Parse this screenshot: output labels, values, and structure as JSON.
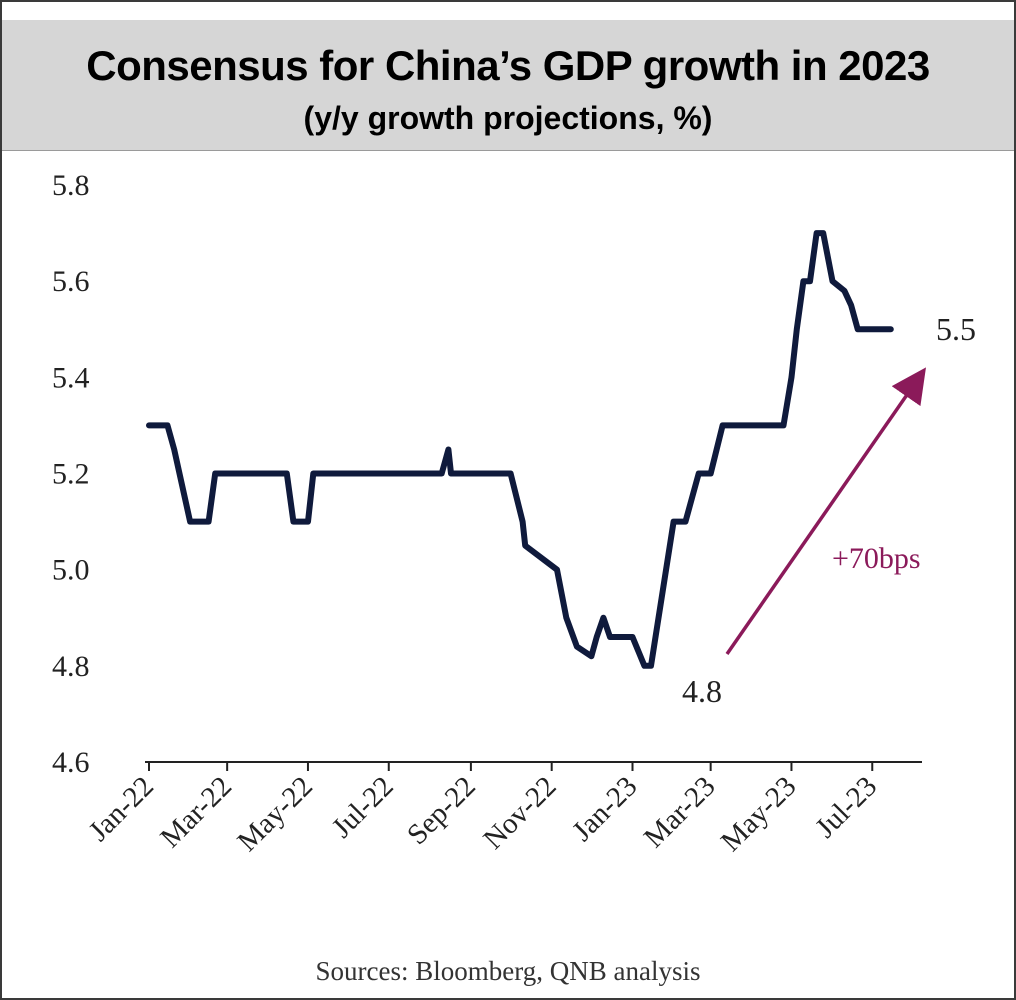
{
  "title": "Consensus for China’s GDP growth in 2023",
  "subtitle": "(y/y growth projections, %)",
  "source": "Sources: Bloomberg, QNB analysis",
  "colors": {
    "line": "#0f1a3c",
    "arrow": "#8b1a5a",
    "header_bg": "#d6d6d6"
  },
  "chart_data": {
    "type": "line",
    "title": "Consensus for China’s GDP growth in 2023",
    "subtitle": "(y/y growth projections, %)",
    "xlabel": "",
    "ylabel": "",
    "ylim": [
      4.6,
      5.8
    ],
    "y_ticks": [
      "4.6",
      "4.8",
      "5.0",
      "5.2",
      "5.4",
      "5.6",
      "5.8"
    ],
    "x_tick_labels": [
      "Jan-22",
      "Mar-22",
      "May-22",
      "Jul-22",
      "Sep-22",
      "Nov-22",
      "Jan-23",
      "Mar-23",
      "May-23",
      "Jul-23"
    ],
    "grid": false,
    "legend": "none",
    "series": [
      {
        "x": [
          "2022-01-01",
          "2022-01-15",
          "2022-01-20",
          "2022-02-01",
          "2022-02-15",
          "2022-02-20",
          "2022-04-15",
          "2022-04-20",
          "2022-05-01",
          "2022-05-05",
          "2022-08-10",
          "2022-08-15",
          "2022-08-17",
          "2022-10-01",
          "2022-10-10",
          "2022-10-12",
          "2022-11-05",
          "2022-11-12",
          "2022-11-20",
          "2022-12-01",
          "2022-12-05",
          "2022-12-10",
          "2022-12-15",
          "2023-01-01",
          "2023-01-10",
          "2023-01-15",
          "2023-02-01",
          "2023-02-10",
          "2023-02-15",
          "2023-02-20",
          "2023-03-01",
          "2023-03-10",
          "2023-04-25",
          "2023-05-01",
          "2023-05-05",
          "2023-05-10",
          "2023-05-15",
          "2023-05-20",
          "2023-05-25",
          "2023-06-01",
          "2023-06-10",
          "2023-06-15",
          "2023-06-20",
          "2023-06-25",
          "2023-07-01",
          "2023-07-15"
        ],
        "values": [
          5.3,
          5.3,
          5.25,
          5.1,
          5.1,
          5.2,
          5.2,
          5.1,
          5.1,
          5.2,
          5.2,
          5.25,
          5.2,
          5.2,
          5.1,
          5.05,
          5.0,
          4.9,
          4.84,
          4.82,
          4.86,
          4.9,
          4.86,
          4.86,
          4.8,
          4.8,
          5.1,
          5.1,
          5.15,
          5.2,
          5.2,
          5.3,
          5.3,
          5.4,
          5.5,
          5.6,
          5.6,
          5.7,
          5.7,
          5.6,
          5.58,
          5.55,
          5.5,
          5.5,
          5.5,
          5.5
        ]
      }
    ],
    "annotations": {
      "start_label": "4.8",
      "end_label": "5.5",
      "change_label": "+70bps"
    }
  }
}
